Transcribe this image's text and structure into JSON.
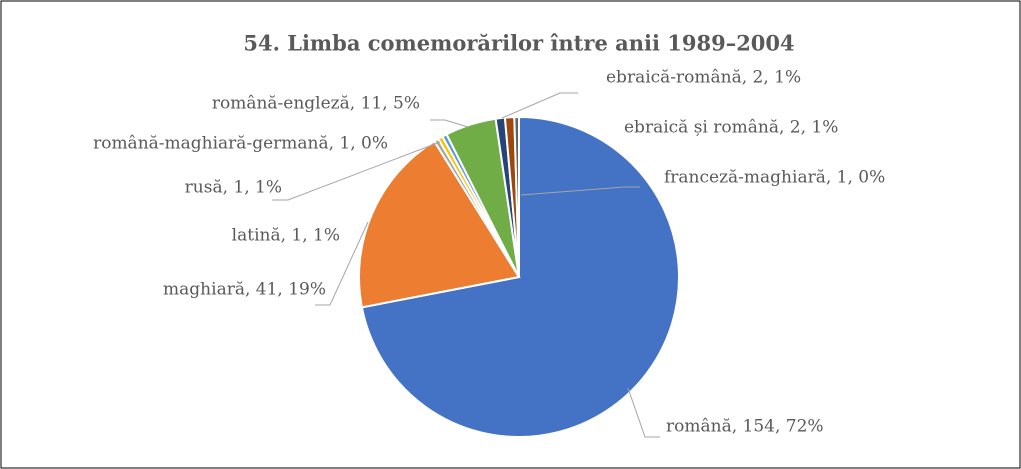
{
  "chart_data": {
    "type": "pie",
    "title": "54. Limba comemorărilor între anii 1989–2004",
    "categories": [
      "română",
      "maghiară",
      "latină",
      "rusă",
      "română-maghiară-germană",
      "română-engleză",
      "ebraică-română",
      "ebraică și română",
      "franceză-maghiară"
    ],
    "values": [
      154,
      41,
      1,
      1,
      1,
      11,
      2,
      2,
      1
    ],
    "value_labels": [
      "română, 154, 72%",
      "maghiară, 41, 19%",
      "latină, 1, 1%",
      "rusă, 1, 1%",
      "română-maghiară-germană, 1, 0%",
      "română-engleză, 11, 5%",
      "ebraică-română, 2, 1%",
      "ebraică și română, 2, 1%",
      "franceză-maghiară, 1, 0%"
    ],
    "colors": [
      "#4472c4",
      "#ed7d31",
      "#a5a5a5",
      "#ffc000",
      "#5b9bd5",
      "#70ad47",
      "#264478",
      "#9e480e",
      "#636363"
    ]
  }
}
